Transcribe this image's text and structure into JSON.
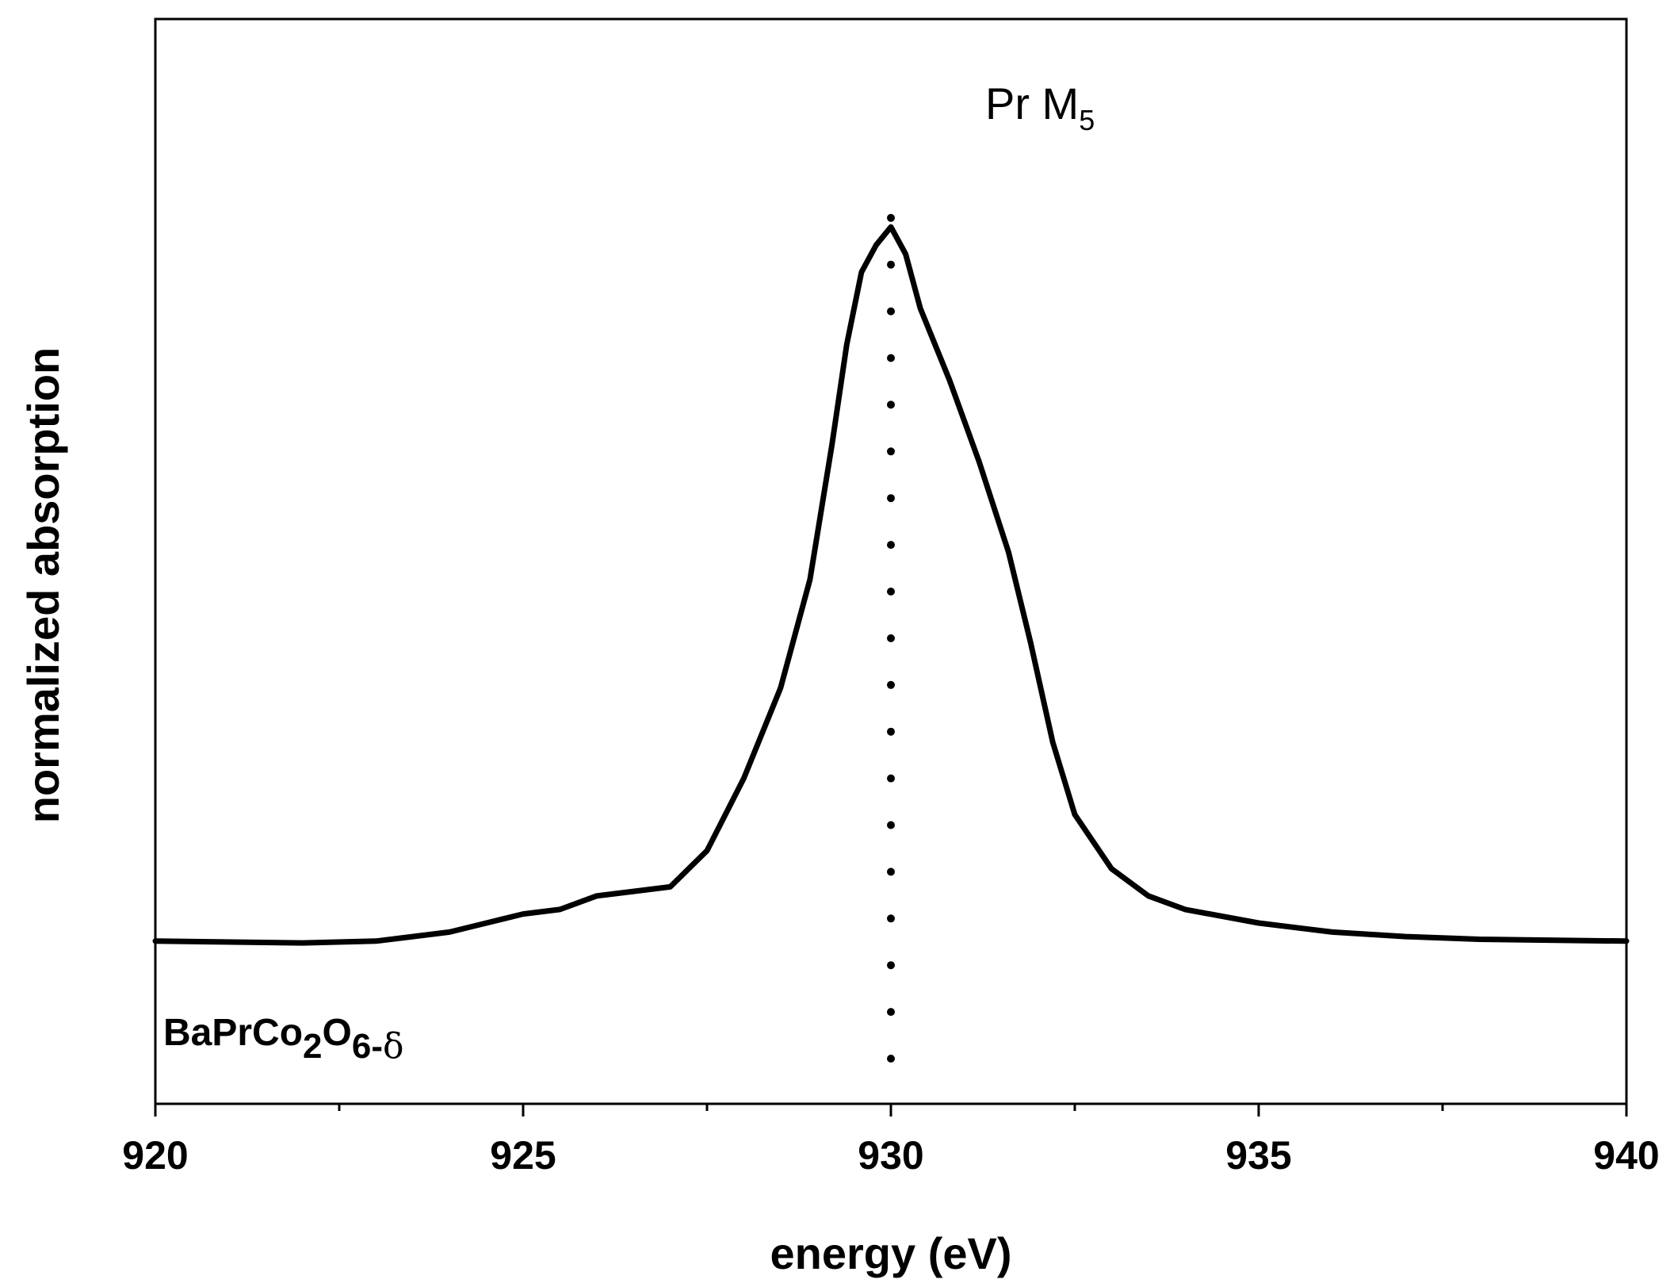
{
  "chart_data": {
    "type": "line",
    "title": "",
    "xlabel": "energy (eV)",
    "ylabel": "normalized absorption",
    "xlim": [
      920,
      940
    ],
    "ylim": [
      -0.18,
      1.02
    ],
    "x_ticks": [
      920,
      925,
      930,
      935,
      940
    ],
    "x_tick_labels": [
      "920",
      "925",
      "930",
      "935",
      "940"
    ],
    "x_minor_ticks": [
      922.5,
      927.5,
      932.5,
      937.5
    ],
    "grid": false,
    "annotation": {
      "base": "Pr M",
      "subscript": "5"
    },
    "sample_label": {
      "parts": [
        {
          "text": "BaPrCo",
          "sub": false
        },
        {
          "text": "2",
          "sub": true
        },
        {
          "text": "O",
          "sub": false
        },
        {
          "text": "6-",
          "sub": true
        },
        {
          "text": "δ",
          "sub": true,
          "greek": true
        }
      ]
    },
    "vertical_marker": {
      "x": 930.0,
      "y_from": -0.13,
      "y_to": 0.8,
      "style": "dotted"
    },
    "series": [
      {
        "name": "BaPrCo2O6-δ",
        "color": "#000000",
        "points": [
          [
            920.0,
            0.0
          ],
          [
            922.0,
            -0.002
          ],
          [
            923.0,
            0.0
          ],
          [
            924.0,
            0.01
          ],
          [
            924.5,
            0.02
          ],
          [
            925.0,
            0.03
          ],
          [
            925.5,
            0.035
          ],
          [
            926.0,
            0.05
          ],
          [
            926.5,
            0.055
          ],
          [
            927.0,
            0.06
          ],
          [
            927.5,
            0.1
          ],
          [
            928.0,
            0.18
          ],
          [
            928.5,
            0.28
          ],
          [
            928.9,
            0.4
          ],
          [
            929.2,
            0.55
          ],
          [
            929.4,
            0.66
          ],
          [
            929.6,
            0.74
          ],
          [
            929.8,
            0.77
          ],
          [
            930.0,
            0.79
          ],
          [
            930.2,
            0.76
          ],
          [
            930.4,
            0.7
          ],
          [
            930.8,
            0.62
          ],
          [
            931.2,
            0.53
          ],
          [
            931.6,
            0.43
          ],
          [
            931.9,
            0.33
          ],
          [
            932.2,
            0.22
          ],
          [
            932.5,
            0.14
          ],
          [
            933.0,
            0.08
          ],
          [
            933.5,
            0.05
          ],
          [
            934.0,
            0.035
          ],
          [
            935.0,
            0.02
          ],
          [
            936.0,
            0.01
          ],
          [
            937.0,
            0.005
          ],
          [
            938.0,
            0.002
          ],
          [
            940.0,
            0.0
          ]
        ]
      }
    ]
  }
}
